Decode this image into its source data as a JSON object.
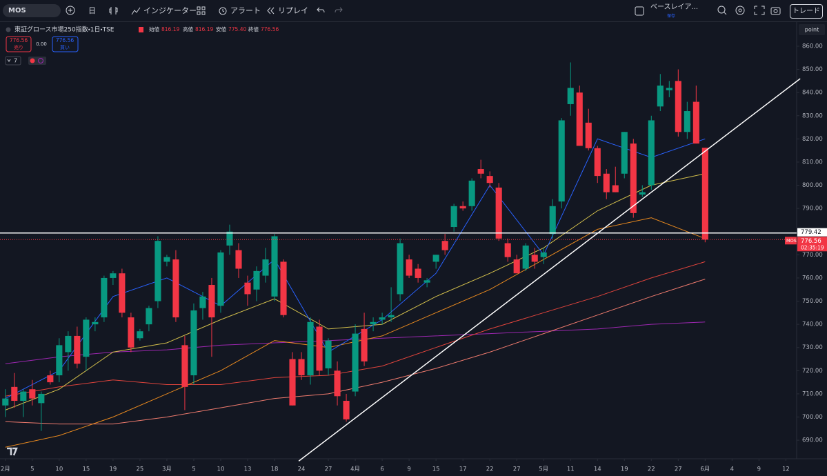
{
  "toolbar": {
    "symbol": "MOS",
    "interval": "日",
    "indicators": "インジケーター",
    "alert": "アラート",
    "replay": "リプレイ",
    "layout": "ベースレイア...",
    "save": "保存",
    "trade": "トレード"
  },
  "legend": {
    "title": "東証グロース市場250指数・1日・TSE",
    "open_label": "始値",
    "open": "816.19",
    "high_label": "高値",
    "high": "816.19",
    "low_label": "安値",
    "low": "775.40",
    "close_label": "終値",
    "close": "776.56",
    "sell_price": "776.56",
    "sell": "売り",
    "spread": "0.00",
    "buy_price": "776.56",
    "buy": "買い",
    "indicator_count": "7"
  },
  "chart_data": {
    "type": "candlestick",
    "up_color": "#089981",
    "down_color": "#f23645",
    "grid": false,
    "scale_mode": "point",
    "x": [
      0,
      1,
      2,
      3,
      4,
      5,
      6,
      7,
      8,
      9,
      10,
      11,
      12,
      13,
      14,
      15,
      16,
      17,
      18,
      19,
      20,
      21,
      22,
      23,
      24,
      25,
      26,
      27,
      28,
      29,
      30,
      31,
      32,
      33,
      34,
      35,
      36,
      37,
      38,
      39,
      40,
      41,
      42,
      43,
      44,
      45,
      46,
      47,
      48,
      49,
      50,
      51,
      52,
      53,
      54,
      55,
      56,
      57,
      58,
      59,
      60,
      61,
      62,
      63,
      64,
      65,
      66,
      67,
      68,
      69,
      70,
      71,
      72,
      73,
      74,
      75,
      76,
      77,
      78
    ],
    "open": [
      705,
      713,
      707,
      712,
      706,
      718,
      718,
      728,
      735,
      726,
      740,
      743,
      760,
      762,
      743,
      734,
      740,
      750,
      767,
      768,
      731,
      718,
      747,
      757,
      748,
      774,
      772,
      758,
      755,
      761,
      752,
      767,
      725,
      725,
      718,
      739,
      721,
      720,
      707,
      711,
      738,
      740,
      742,
      743,
      753,
      768,
      764,
      758,
      767,
      776,
      782,
      791,
      791,
      807,
      804,
      799,
      775,
      768,
      764,
      770,
      769,
      779,
      793,
      835,
      840,
      827,
      816,
      805,
      800,
      805,
      818,
      796,
      800,
      834,
      841,
      845,
      823,
      836,
      816.19
    ],
    "high": [
      712,
      719,
      712,
      716,
      711,
      720,
      734,
      737,
      739,
      743,
      743,
      761,
      763,
      764,
      745,
      738,
      748,
      778,
      770,
      772,
      735,
      749,
      754,
      760,
      772,
      783,
      775,
      761,
      765,
      773,
      779,
      768,
      728,
      728,
      743,
      742,
      734,
      724,
      710,
      740,
      745,
      743,
      745,
      756,
      777,
      770,
      766,
      760,
      770,
      779,
      792,
      793,
      803,
      811,
      806,
      801,
      777,
      770,
      775,
      773,
      773,
      794,
      829,
      853,
      843,
      833,
      817,
      807,
      808,
      823,
      820,
      800,
      830,
      848,
      845,
      850,
      836,
      843,
      816.19
    ],
    "low": [
      700,
      704,
      700,
      705,
      694,
      714,
      715,
      720,
      721,
      720,
      737,
      741,
      757,
      743,
      728,
      733,
      737,
      747,
      765,
      741,
      703,
      714,
      742,
      726,
      745,
      770,
      760,
      748,
      750,
      758,
      750,
      743,
      705,
      716,
      714,
      718,
      718,
      705,
      698,
      709,
      722,
      737,
      740,
      741,
      750,
      760,
      758,
      756,
      764,
      770,
      780,
      789,
      789,
      803,
      799,
      776,
      767,
      762,
      763,
      764,
      766,
      777,
      790,
      830,
      817,
      815,
      801,
      794,
      797,
      803,
      786,
      795,
      798,
      832,
      838,
      821,
      820,
      818,
      775.4
    ],
    "close": [
      708,
      707,
      711,
      708,
      710,
      715,
      731,
      735,
      723,
      742,
      741,
      760,
      762,
      745,
      730,
      737,
      747,
      776,
      769,
      743,
      713,
      746,
      752,
      743,
      771,
      780,
      764,
      753,
      763,
      768,
      778,
      744,
      705,
      718,
      741,
      720,
      733,
      709,
      699,
      736,
      724,
      741,
      743,
      744,
      775,
      761,
      760,
      759,
      770,
      772,
      791,
      790,
      802,
      805,
      801,
      777,
      769,
      762,
      774,
      767,
      771,
      791,
      828,
      842,
      817,
      816,
      804,
      797,
      797,
      823,
      788,
      797,
      828,
      843,
      842,
      823,
      832,
      818,
      776.56
    ],
    "indicators": [
      {
        "color": "#9c27b0",
        "x": [
          0,
          6,
          12,
          18,
          24,
          30,
          36,
          42,
          48,
          54,
          60,
          66,
          72,
          78
        ],
        "values": [
          723,
          726,
          728,
          729,
          731,
          732,
          733,
          734,
          735,
          736,
          737,
          738,
          740,
          741
        ]
      },
      {
        "color": "#f07b6e",
        "x": [
          0,
          6,
          12,
          18,
          24,
          30,
          36,
          42,
          48,
          54,
          60,
          66,
          72,
          78
        ],
        "values": [
          698,
          697,
          697,
          700,
          704,
          708,
          710,
          715,
          721,
          728,
          736,
          744,
          752,
          759.5
        ]
      },
      {
        "color": "#e0443c",
        "x": [
          0,
          6,
          12,
          18,
          24,
          30,
          36,
          42,
          48,
          54,
          60,
          66,
          72,
          78
        ],
        "values": [
          709,
          713,
          716,
          714,
          714,
          717,
          718,
          722,
          730,
          738,
          745,
          752,
          760,
          767
        ]
      },
      {
        "color": "#e8891f",
        "x": [
          0,
          6,
          12,
          18,
          24,
          30,
          36,
          42,
          48,
          54,
          60,
          66,
          72,
          78
        ],
        "values": [
          687,
          692,
          700,
          710,
          720,
          733,
          730,
          735,
          745,
          755,
          768,
          781,
          786,
          777
        ]
      },
      {
        "color": "#d4c04c",
        "x": [
          0,
          6,
          12,
          18,
          24,
          30,
          36,
          42,
          48,
          54,
          60,
          66,
          72,
          78
        ],
        "values": [
          703,
          712,
          728,
          732,
          742,
          751,
          738,
          740,
          752,
          762,
          773,
          789,
          800,
          805
        ]
      },
      {
        "color": "#2962ff",
        "x": [
          0,
          6,
          12,
          18,
          24,
          30,
          36,
          42,
          48,
          54,
          60,
          66,
          72,
          78
        ],
        "values": [
          708,
          720,
          752,
          760,
          748,
          768,
          728,
          742,
          762,
          800,
          770,
          820,
          812,
          820
        ]
      }
    ],
    "trendline": {
      "color": "#ffffff",
      "x": [
        32.7,
        88.6
      ],
      "y": [
        681,
        846
      ]
    },
    "hline": {
      "color": "#ffffff",
      "value": 779.42
    },
    "last_price": {
      "symbol": "MOS",
      "value": 776.56,
      "countdown": "02:35:19"
    },
    "xlim": [
      -0.6,
      88.2
    ],
    "xticks": [
      {
        "value": 0,
        "label": "2月"
      },
      {
        "value": 3,
        "label": "5"
      },
      {
        "value": 6,
        "label": "10"
      },
      {
        "value": 9,
        "label": "15"
      },
      {
        "value": 12,
        "label": "19"
      },
      {
        "value": 15,
        "label": "25"
      },
      {
        "value": 18,
        "label": "3月"
      },
      {
        "value": 21,
        "label": "5"
      },
      {
        "value": 24,
        "label": "10"
      },
      {
        "value": 27,
        "label": "13"
      },
      {
        "value": 30,
        "label": "18"
      },
      {
        "value": 33,
        "label": "24"
      },
      {
        "value": 36,
        "label": "27"
      },
      {
        "value": 39,
        "label": "4月"
      },
      {
        "value": 42,
        "label": "6"
      },
      {
        "value": 45,
        "label": "9"
      },
      {
        "value": 48,
        "label": "15"
      },
      {
        "value": 51,
        "label": "17"
      },
      {
        "value": 54,
        "label": "22"
      },
      {
        "value": 57,
        "label": "27"
      },
      {
        "value": 60,
        "label": "5月"
      },
      {
        "value": 63,
        "label": "11"
      },
      {
        "value": 66,
        "label": "14"
      },
      {
        "value": 69,
        "label": "19"
      },
      {
        "value": 72,
        "label": "22"
      },
      {
        "value": 75,
        "label": "27"
      },
      {
        "value": 78,
        "label": "6月"
      },
      {
        "value": 81,
        "label": "4"
      },
      {
        "value": 84,
        "label": "9"
      },
      {
        "value": 87,
        "label": "12"
      }
    ],
    "ylim": [
      682,
      871
    ],
    "yticks": [
      {
        "value": 690,
        "label": "690.00"
      },
      {
        "value": 700,
        "label": "700.00"
      },
      {
        "value": 710,
        "label": "710.00"
      },
      {
        "value": 720,
        "label": "720.00"
      },
      {
        "value": 730,
        "label": "730.00"
      },
      {
        "value": 740,
        "label": "740.00"
      },
      {
        "value": 750,
        "label": "750.00"
      },
      {
        "value": 760,
        "label": "760.00"
      },
      {
        "value": 770,
        "label": "770.00"
      },
      {
        "value": 780,
        "label": "780.00"
      },
      {
        "value": 790,
        "label": "790.00"
      },
      {
        "value": 800,
        "label": "800.00"
      },
      {
        "value": 810,
        "label": "810.00"
      },
      {
        "value": 820,
        "label": "820.00"
      },
      {
        "value": 830,
        "label": "830.00"
      },
      {
        "value": 840,
        "label": "840.00"
      },
      {
        "value": 850,
        "label": "850.00"
      },
      {
        "value": 860,
        "label": "860.00"
      }
    ]
  }
}
